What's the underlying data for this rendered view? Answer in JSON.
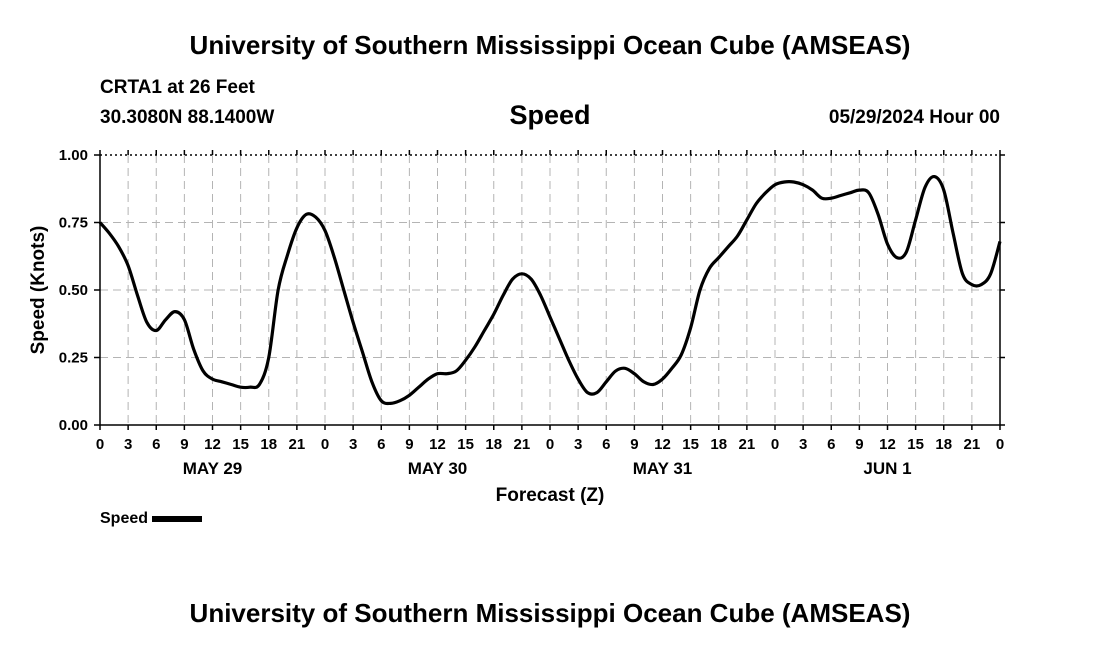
{
  "header": {
    "title": "University of Southern Mississippi Ocean Cube (AMSEAS)",
    "station": "CRTA1 at 26 Feet",
    "coordinates": "30.3080N  88.1400W",
    "subtitle": "Speed",
    "issued": "05/29/2024 Hour 00"
  },
  "footer": {
    "title": "University of Southern Mississippi Ocean Cube (AMSEAS)"
  },
  "legend": {
    "label": "Speed",
    "color": "#000000"
  },
  "chart_data": {
    "type": "line",
    "xlabel": "Forecast (Z)",
    "ylabel": "Speed (Knots)",
    "xlim": [
      0,
      96
    ],
    "ylim": [
      0,
      1.0
    ],
    "yticks": [
      "0.00",
      "0.25",
      "0.50",
      "0.75",
      "1.00"
    ],
    "xticks": [
      "0",
      "3",
      "6",
      "9",
      "12",
      "15",
      "18",
      "21",
      "0",
      "3",
      "6",
      "9",
      "12",
      "15",
      "18",
      "21",
      "0",
      "3",
      "6",
      "9",
      "12",
      "15",
      "18",
      "21",
      "0",
      "3",
      "6",
      "9",
      "12",
      "15",
      "18",
      "21",
      "0"
    ],
    "day_labels": [
      {
        "label": "MAY 29",
        "hour": 12
      },
      {
        "label": "MAY 30",
        "hour": 36
      },
      {
        "label": "MAY 31",
        "hour": 60
      },
      {
        "label": "JUN 1",
        "hour": 84
      }
    ],
    "grid": true,
    "series": [
      {
        "name": "Speed",
        "color": "#000000",
        "x": [
          0,
          1,
          2,
          3,
          4,
          5,
          6,
          7,
          8,
          9,
          10,
          11,
          12,
          13,
          14,
          15,
          16,
          17,
          18,
          19,
          20,
          21,
          22,
          23,
          24,
          25,
          26,
          27,
          28,
          29,
          30,
          31,
          32,
          33,
          34,
          35,
          36,
          37,
          38,
          39,
          40,
          41,
          42,
          43,
          44,
          45,
          46,
          47,
          48,
          49,
          50,
          51,
          52,
          53,
          54,
          55,
          56,
          57,
          58,
          59,
          60,
          61,
          62,
          63,
          64,
          65,
          66,
          67,
          68,
          69,
          70,
          71,
          72,
          73,
          74,
          75,
          76,
          77,
          78,
          79,
          80,
          81,
          82,
          83,
          84,
          85,
          86,
          87,
          88,
          89,
          90,
          91,
          92,
          93,
          94,
          95,
          96
        ],
        "values": [
          0.75,
          0.71,
          0.66,
          0.59,
          0.48,
          0.38,
          0.35,
          0.39,
          0.42,
          0.39,
          0.28,
          0.2,
          0.17,
          0.16,
          0.15,
          0.14,
          0.14,
          0.15,
          0.25,
          0.5,
          0.63,
          0.73,
          0.78,
          0.77,
          0.72,
          0.62,
          0.5,
          0.38,
          0.27,
          0.16,
          0.09,
          0.08,
          0.09,
          0.11,
          0.14,
          0.17,
          0.19,
          0.19,
          0.2,
          0.24,
          0.29,
          0.35,
          0.41,
          0.48,
          0.54,
          0.56,
          0.54,
          0.48,
          0.4,
          0.32,
          0.24,
          0.17,
          0.12,
          0.12,
          0.16,
          0.2,
          0.21,
          0.19,
          0.16,
          0.15,
          0.17,
          0.21,
          0.26,
          0.36,
          0.5,
          0.58,
          0.62,
          0.66,
          0.7,
          0.76,
          0.82,
          0.86,
          0.89,
          0.9,
          0.9,
          0.89,
          0.87,
          0.84,
          0.84,
          0.85,
          0.86,
          0.87,
          0.86,
          0.78,
          0.67,
          0.62,
          0.64,
          0.76,
          0.88,
          0.92,
          0.87,
          0.71,
          0.56,
          0.52,
          0.52,
          0.56,
          0.68
        ]
      }
    ]
  }
}
